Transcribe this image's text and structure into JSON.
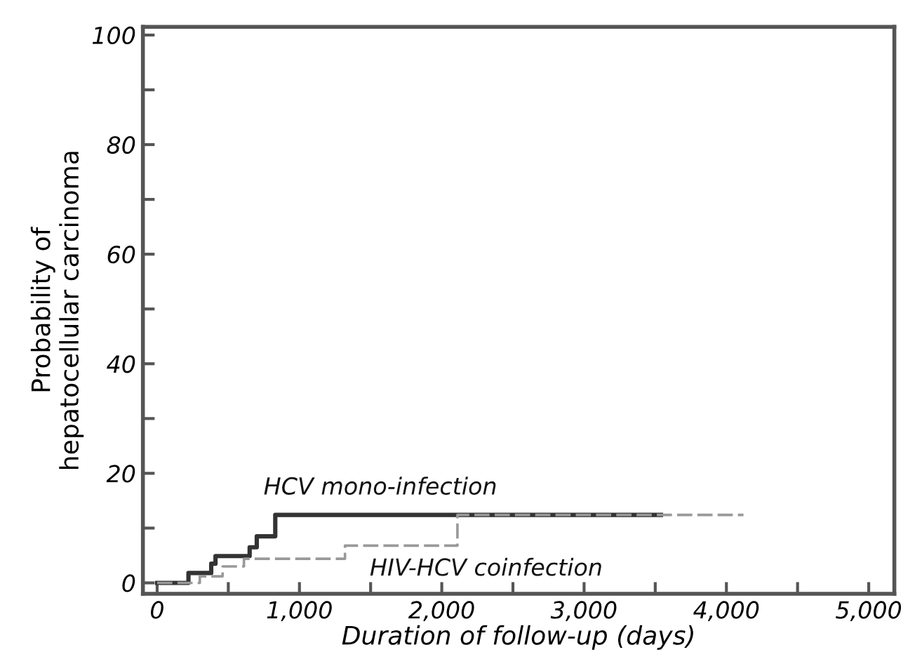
{
  "chart_data": {
    "type": "step",
    "xlabel": "Duration of follow-up (days)",
    "ylabel": "Probability of\nhepatocellular carcinoma",
    "xlim": [
      -100,
      5180
    ],
    "ylim": [
      -2,
      101.5
    ],
    "xticks": [
      {
        "value": 0,
        "label": "0"
      },
      {
        "value": 500,
        "label": null
      },
      {
        "value": 1000,
        "label": "1,000"
      },
      {
        "value": 1500,
        "label": null
      },
      {
        "value": 2000,
        "label": "2,000"
      },
      {
        "value": 2500,
        "label": null
      },
      {
        "value": 3000,
        "label": "3,000"
      },
      {
        "value": 3500,
        "label": null
      },
      {
        "value": 4000,
        "label": "4,000"
      },
      {
        "value": 4500,
        "label": null
      },
      {
        "value": 5000,
        "label": "5,000"
      }
    ],
    "yticks": [
      0,
      {
        "value": 10,
        "label": null
      },
      20,
      {
        "value": 30,
        "label": null
      },
      40,
      {
        "value": 50,
        "label": null
      },
      60,
      {
        "value": 70,
        "label": null
      },
      80,
      {
        "value": 90,
        "label": null
      },
      100
    ],
    "grid": false,
    "legend": false,
    "series": [
      {
        "name": "HCV mono-infection",
        "color": "#333333",
        "line_style": "solid",
        "x": [
          0,
          220,
          380,
          410,
          650,
          700,
          830,
          3540
        ],
        "values": [
          0,
          1.8,
          3.5,
          4.9,
          6.5,
          8.5,
          12.4,
          12.4
        ]
      },
      {
        "name": "HIV-HCV coinfection",
        "color": "#999999",
        "line_style": "dashed",
        "x": [
          0,
          300,
          460,
          610,
          1320,
          2110,
          4120
        ],
        "values": [
          0,
          1.2,
          3,
          4.4,
          6.8,
          12.4,
          12.4
        ]
      }
    ]
  }
}
